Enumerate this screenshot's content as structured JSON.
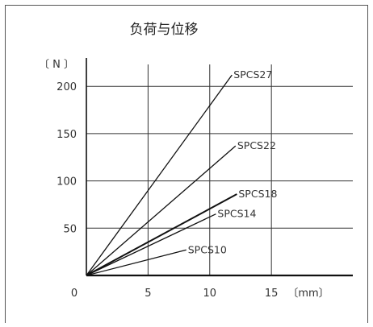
{
  "chart_data": {
    "type": "line",
    "title": "负荷与位移",
    "ylabel": "〔 N 〕",
    "xunit": "〔mm〕",
    "xlim": [
      0,
      18
    ],
    "ylim": [
      0,
      230
    ],
    "x_ticks": [
      0,
      5,
      10,
      15
    ],
    "y_ticks": [
      50,
      100,
      150,
      200
    ],
    "grid": true,
    "series": [
      {
        "name": "SPCS27",
        "points": [
          [
            0,
            0
          ],
          [
            11.8,
            212
          ]
        ]
      },
      {
        "name": "SPCS22",
        "points": [
          [
            0,
            0
          ],
          [
            12.1,
            137
          ]
        ]
      },
      {
        "name": "SPCS18",
        "points": [
          [
            0,
            0
          ],
          [
            12.2,
            86
          ]
        ]
      },
      {
        "name": "SPCS14",
        "points": [
          [
            0,
            0
          ],
          [
            10.5,
            65
          ]
        ]
      },
      {
        "name": "SPCS10",
        "points": [
          [
            0,
            0
          ],
          [
            8.1,
            27
          ]
        ]
      }
    ]
  }
}
